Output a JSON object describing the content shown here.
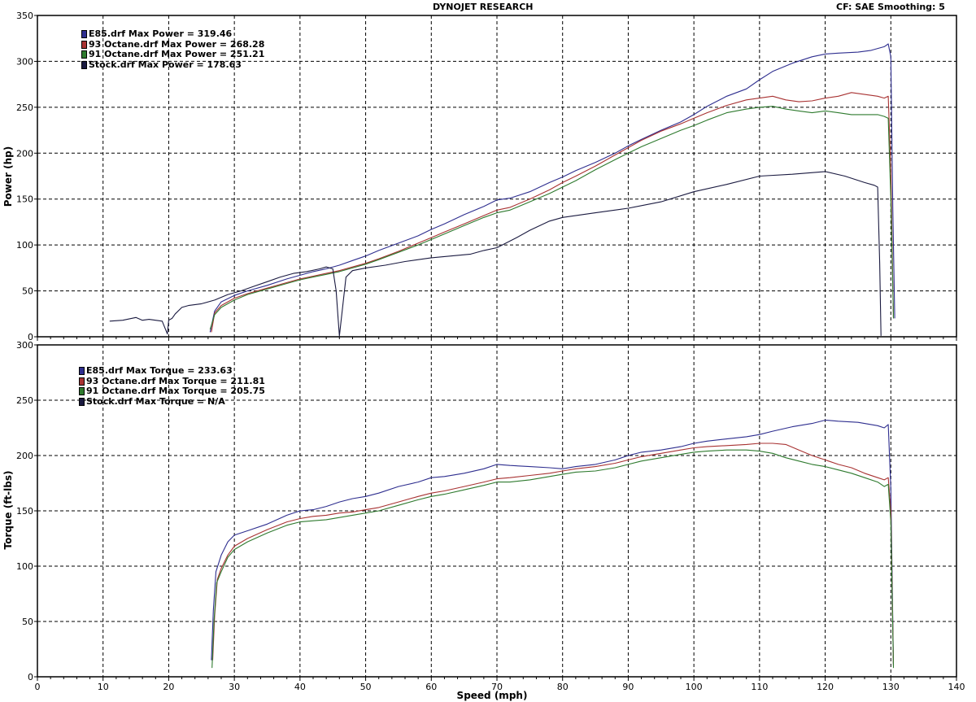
{
  "header": {
    "title": "DYNOJET RESEARCH",
    "correction": "CF: SAE  Smoothing: 5"
  },
  "colors": {
    "E85": "#2e2e8f",
    "93 Octane": "#a83232",
    "91 Octane": "#2e7a2e",
    "Stock": "#1a1a40",
    "grid": "#000000"
  },
  "chart_data": [
    {
      "type": "line",
      "title": "",
      "xlabel": "Speed (mph)",
      "ylabel": "Power (hp)",
      "xlim": [
        0,
        140
      ],
      "ylim": [
        0,
        350
      ],
      "xticks": [
        0,
        10,
        20,
        30,
        40,
        50,
        60,
        70,
        80,
        90,
        100,
        110,
        120,
        130,
        140
      ],
      "yticks": [
        0,
        50,
        100,
        150,
        200,
        250,
        300,
        350
      ],
      "grid": true,
      "legend_position": "top-left",
      "legend": [
        "E85.drf Max Power = 319.46",
        "93 Octane.drf Max Power = 268.28",
        "91 Octane.drf Max Power = 251.21",
        "Stock.drf Max Power = 178.63"
      ],
      "series": [
        {
          "name": "E85",
          "x": [
            26.3,
            27,
            28,
            30,
            32,
            35,
            38,
            40,
            42,
            44,
            46,
            48,
            50,
            52,
            55,
            58,
            60,
            62,
            65,
            68,
            70,
            72,
            75,
            78,
            80,
            82,
            85,
            88,
            90,
            92,
            95,
            98,
            100,
            102,
            105,
            108,
            110,
            112,
            115,
            118,
            120,
            122,
            125,
            127,
            128,
            129,
            129.6,
            130,
            130.3,
            130.6
          ],
          "y": [
            5,
            28,
            38,
            45,
            50,
            56,
            63,
            67,
            71,
            74,
            78,
            83,
            88,
            94,
            102,
            110,
            117,
            123,
            133,
            142,
            149,
            151,
            158,
            168,
            174,
            181,
            190,
            200,
            208,
            215,
            225,
            234,
            242,
            251,
            262,
            270,
            280,
            289,
            298,
            305,
            308,
            309,
            310,
            312,
            314,
            316,
            319,
            305,
            140,
            20
          ]
        },
        {
          "name": "93 Octane",
          "x": [
            26.5,
            27,
            28,
            30,
            32,
            35,
            38,
            40,
            42,
            44,
            46,
            48,
            50,
            52,
            55,
            58,
            60,
            62,
            65,
            68,
            70,
            72,
            75,
            78,
            80,
            82,
            85,
            88,
            90,
            92,
            95,
            98,
            100,
            102,
            105,
            108,
            110,
            112,
            114,
            116,
            118,
            120,
            122,
            124,
            126,
            128,
            129,
            129.6,
            130,
            130.4
          ],
          "y": [
            5,
            26,
            34,
            42,
            47,
            53,
            59,
            63,
            66,
            69,
            72,
            76,
            80,
            85,
            93,
            102,
            108,
            114,
            123,
            132,
            138,
            141,
            150,
            160,
            168,
            175,
            186,
            198,
            206,
            214,
            224,
            232,
            238,
            244,
            252,
            258,
            260,
            262,
            258,
            256,
            257,
            260,
            262,
            266,
            264,
            262,
            260,
            262,
            180,
            20
          ]
        },
        {
          "name": "91 Octane",
          "x": [
            26.3,
            27,
            28,
            30,
            32,
            35,
            38,
            40,
            42,
            44,
            46,
            48,
            50,
            52,
            55,
            58,
            60,
            62,
            65,
            68,
            70,
            72,
            75,
            78,
            80,
            82,
            85,
            88,
            90,
            92,
            95,
            98,
            100,
            102,
            105,
            108,
            110,
            112,
            114,
            116,
            118,
            120,
            122,
            124,
            126,
            128,
            129,
            129.6,
            130,
            130.4
          ],
          "y": [
            8,
            24,
            32,
            40,
            46,
            52,
            58,
            62,
            65,
            68,
            71,
            75,
            79,
            84,
            92,
            100,
            106,
            112,
            121,
            130,
            135,
            138,
            147,
            156,
            163,
            170,
            182,
            193,
            200,
            207,
            216,
            225,
            230,
            236,
            244,
            248,
            250,
            251,
            248,
            246,
            244,
            246,
            244,
            242,
            242,
            242,
            240,
            238,
            150,
            20
          ]
        },
        {
          "name": "Stock",
          "x": [
            11,
            13,
            15,
            16,
            17,
            19,
            19.8,
            20,
            20.5,
            21,
            22,
            23,
            25,
            27,
            29,
            31,
            33,
            35,
            37,
            39,
            41,
            43,
            44,
            45,
            45.5,
            45.8,
            46,
            47,
            48,
            50,
            53,
            56,
            60,
            63,
            66,
            68,
            70,
            73,
            75,
            78,
            80,
            85,
            90,
            95,
            100,
            105,
            110,
            115,
            120,
            123,
            126,
            127.5,
            128,
            128.3,
            128.5
          ],
          "y": [
            17,
            18,
            21,
            18,
            19,
            17,
            3,
            18,
            20,
            25,
            32,
            34,
            36,
            40,
            46,
            50,
            55,
            60,
            65,
            69,
            71,
            74,
            76,
            74,
            50,
            20,
            1,
            65,
            72,
            75,
            78,
            82,
            86,
            88,
            90,
            94,
            97,
            108,
            116,
            126,
            130,
            135,
            140,
            147,
            158,
            166,
            175,
            177,
            180,
            175,
            168,
            165,
            163,
            80,
            1
          ]
        }
      ]
    },
    {
      "type": "line",
      "title": "",
      "xlabel": "Speed (mph)",
      "ylabel": "Torque (ft-lbs)",
      "xlim": [
        0,
        140
      ],
      "ylim": [
        0,
        300
      ],
      "xticks": [
        0,
        10,
        20,
        30,
        40,
        50,
        60,
        70,
        80,
        90,
        100,
        110,
        120,
        130,
        140
      ],
      "yticks": [
        0,
        50,
        100,
        150,
        200,
        250,
        300
      ],
      "grid": true,
      "legend_position": "top-left",
      "legend": [
        "E85.drf Max Torque = 233.63",
        "93 Octane.drf Max Torque = 211.81",
        "91 Octane.drf Max Torque = 205.75",
        "Stock.drf Max Torque = N/A"
      ],
      "series": [
        {
          "name": "E85",
          "x": [
            26.5,
            26.8,
            27.2,
            28,
            29,
            30,
            32,
            35,
            38,
            40,
            42,
            44,
            46,
            48,
            50,
            52,
            55,
            58,
            60,
            62,
            65,
            68,
            70,
            72,
            75,
            78,
            80,
            82,
            85,
            88,
            90,
            92,
            95,
            98,
            100,
            102,
            105,
            108,
            110,
            112,
            115,
            118,
            120,
            122,
            125,
            128,
            129,
            129.6,
            130,
            130.4
          ],
          "y": [
            15,
            60,
            95,
            110,
            122,
            128,
            132,
            138,
            146,
            150,
            151,
            154,
            158,
            161,
            163,
            166,
            172,
            176,
            180,
            181,
            184,
            188,
            192,
            191,
            190,
            189,
            188,
            190,
            192,
            196,
            200,
            203,
            205,
            208,
            211,
            213,
            215,
            217,
            219,
            222,
            226,
            229,
            232,
            231,
            230,
            227,
            225,
            228,
            170,
            10
          ]
        },
        {
          "name": "93 Octane",
          "x": [
            26.7,
            27,
            27.4,
            28,
            29,
            30,
            32,
            35,
            38,
            40,
            42,
            44,
            46,
            48,
            50,
            52,
            55,
            58,
            60,
            62,
            65,
            68,
            70,
            72,
            75,
            78,
            80,
            82,
            85,
            88,
            90,
            92,
            95,
            98,
            100,
            102,
            105,
            108,
            110,
            112,
            114,
            116,
            118,
            120,
            122,
            124,
            126,
            128,
            129,
            129.6,
            130,
            130.4
          ],
          "y": [
            15,
            55,
            88,
            98,
            110,
            118,
            125,
            133,
            140,
            143,
            145,
            146,
            148,
            149,
            151,
            153,
            158,
            163,
            166,
            168,
            172,
            176,
            179,
            180,
            182,
            184,
            186,
            188,
            190,
            193,
            196,
            199,
            202,
            205,
            207,
            208,
            209,
            210,
            211,
            211,
            210,
            205,
            200,
            196,
            192,
            189,
            184,
            180,
            178,
            180,
            150,
            10
          ]
        },
        {
          "name": "91 Octane",
          "x": [
            26.6,
            26.9,
            27.3,
            28,
            29,
            30,
            32,
            35,
            38,
            40,
            42,
            44,
            46,
            48,
            50,
            52,
            55,
            58,
            60,
            62,
            65,
            68,
            70,
            72,
            75,
            78,
            80,
            82,
            85,
            88,
            90,
            92,
            95,
            98,
            100,
            102,
            105,
            108,
            110,
            112,
            114,
            116,
            118,
            120,
            122,
            124,
            126,
            128,
            129,
            129.6,
            130,
            130.4
          ],
          "y": [
            8,
            50,
            85,
            95,
            108,
            115,
            122,
            130,
            137,
            140,
            141,
            142,
            144,
            146,
            148,
            150,
            155,
            160,
            163,
            165,
            169,
            173,
            176,
            176,
            178,
            181,
            183,
            185,
            186,
            189,
            192,
            195,
            198,
            201,
            203,
            204,
            205,
            205,
            204,
            202,
            198,
            195,
            192,
            190,
            187,
            184,
            180,
            176,
            172,
            174,
            140,
            8
          ]
        }
      ]
    }
  ]
}
